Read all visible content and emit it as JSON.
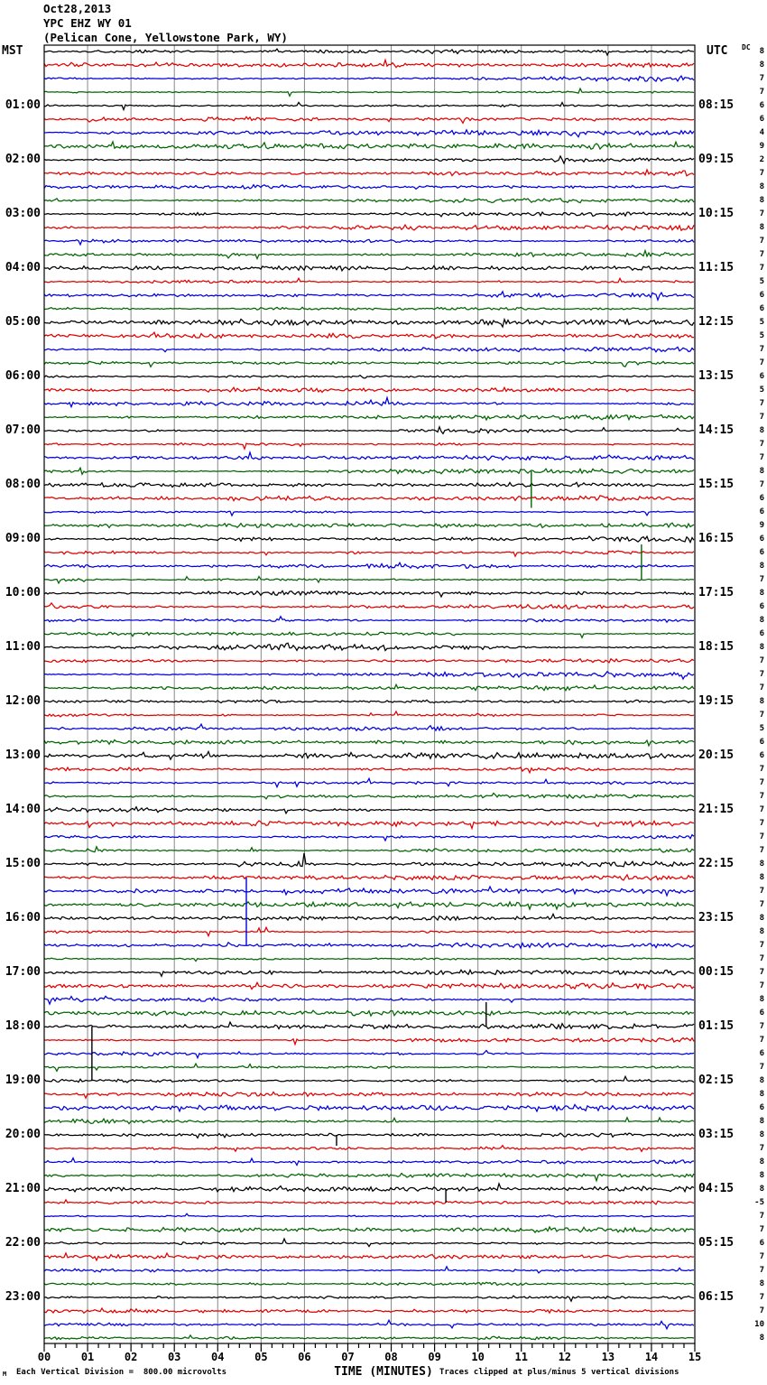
{
  "header": {
    "date": "Oct28,2013",
    "station": "YPC EHZ WY 01",
    "location": "(Pelican Cone, Yellowstone Park, WY)"
  },
  "axes": {
    "left_header": "MST",
    "right_header": "UTC",
    "dc_header": "DC",
    "xlabel": "TIME (MINUTES)",
    "x_ticks": [
      "00",
      "01",
      "02",
      "03",
      "04",
      "05",
      "06",
      "07",
      "08",
      "09",
      "10",
      "11",
      "12",
      "13",
      "14",
      "15"
    ]
  },
  "footer": {
    "left": "Each Vertical Division =  800.00 microvolts",
    "right": "Traces clipped at plus/minus 5 vertical divisions",
    "watermark": "M"
  },
  "colors": {
    "black": "#000000",
    "red": "#e00000",
    "blue": "#0000dd",
    "green": "#006600",
    "grid": "#888888"
  },
  "chart_data": {
    "type": "line",
    "subtype": "helicorder-seismogram",
    "x_range_minutes": [
      0,
      15
    ],
    "minutes_per_row": 15,
    "rows_per_hour": 4,
    "clip_divisions": 5,
    "division_microvolts": 800.0,
    "hour_marks": [
      {
        "mst": "01:00",
        "utc": "08:15"
      },
      {
        "mst": "02:00",
        "utc": "09:15"
      },
      {
        "mst": "03:00",
        "utc": "10:15"
      },
      {
        "mst": "04:00",
        "utc": "11:15"
      },
      {
        "mst": "05:00",
        "utc": "12:15"
      },
      {
        "mst": "06:00",
        "utc": "13:15"
      },
      {
        "mst": "07:00",
        "utc": "14:15"
      },
      {
        "mst": "08:00",
        "utc": "15:15"
      },
      {
        "mst": "09:00",
        "utc": "16:15"
      },
      {
        "mst": "10:00",
        "utc": "17:15"
      },
      {
        "mst": "11:00",
        "utc": "18:15"
      },
      {
        "mst": "12:00",
        "utc": "19:15"
      },
      {
        "mst": "13:00",
        "utc": "20:15"
      },
      {
        "mst": "14:00",
        "utc": "21:15"
      },
      {
        "mst": "15:00",
        "utc": "22:15"
      },
      {
        "mst": "16:00",
        "utc": "23:15"
      },
      {
        "mst": "17:00",
        "utc": "00:15"
      },
      {
        "mst": "18:00",
        "utc": "01:15"
      },
      {
        "mst": "19:00",
        "utc": "02:15"
      },
      {
        "mst": "20:00",
        "utc": "03:15"
      },
      {
        "mst": "21:00",
        "utc": "04:15"
      },
      {
        "mst": "22:00",
        "utc": "05:15"
      },
      {
        "mst": "23:00",
        "utc": "06:15"
      }
    ],
    "rows_format": [
      "start_mst",
      "color",
      "dc"
    ],
    "rows": [
      [
        "00:00",
        "black",
        8
      ],
      [
        "00:15",
        "red",
        8
      ],
      [
        "00:30",
        "blue",
        7
      ],
      [
        "00:45",
        "green",
        7
      ],
      [
        "01:00",
        "black",
        6
      ],
      [
        "01:15",
        "red",
        6
      ],
      [
        "01:30",
        "blue",
        4
      ],
      [
        "01:45",
        "green",
        9
      ],
      [
        "02:00",
        "black",
        2
      ],
      [
        "02:15",
        "red",
        7
      ],
      [
        "02:30",
        "blue",
        8
      ],
      [
        "02:45",
        "green",
        8
      ],
      [
        "03:00",
        "black",
        7
      ],
      [
        "03:15",
        "red",
        8
      ],
      [
        "03:30",
        "blue",
        7
      ],
      [
        "03:45",
        "green",
        7
      ],
      [
        "04:00",
        "black",
        7
      ],
      [
        "04:15",
        "red",
        5
      ],
      [
        "04:30",
        "blue",
        6
      ],
      [
        "04:45",
        "green",
        6
      ],
      [
        "05:00",
        "black",
        5
      ],
      [
        "05:15",
        "red",
        5
      ],
      [
        "05:30",
        "blue",
        7
      ],
      [
        "05:45",
        "green",
        7
      ],
      [
        "06:00",
        "black",
        6
      ],
      [
        "06:15",
        "red",
        5
      ],
      [
        "06:30",
        "blue",
        7
      ],
      [
        "06:45",
        "green",
        7
      ],
      [
        "07:00",
        "black",
        8
      ],
      [
        "07:15",
        "red",
        7
      ],
      [
        "07:30",
        "blue",
        7
      ],
      [
        "07:45",
        "green",
        8
      ],
      [
        "08:00",
        "black",
        7
      ],
      [
        "08:15",
        "red",
        6
      ],
      [
        "08:30",
        "blue",
        6
      ],
      [
        "08:45",
        "green",
        9
      ],
      [
        "09:00",
        "black",
        6
      ],
      [
        "09:15",
        "red",
        6
      ],
      [
        "09:30",
        "blue",
        8
      ],
      [
        "09:45",
        "green",
        7
      ],
      [
        "10:00",
        "black",
        8
      ],
      [
        "10:15",
        "red",
        6
      ],
      [
        "10:30",
        "blue",
        8
      ],
      [
        "10:45",
        "green",
        6
      ],
      [
        "11:00",
        "black",
        8
      ],
      [
        "11:15",
        "red",
        7
      ],
      [
        "11:30",
        "blue",
        7
      ],
      [
        "11:45",
        "green",
        7
      ],
      [
        "12:00",
        "black",
        8
      ],
      [
        "12:15",
        "red",
        7
      ],
      [
        "12:30",
        "blue",
        5
      ],
      [
        "12:45",
        "green",
        6
      ],
      [
        "13:00",
        "black",
        6
      ],
      [
        "13:15",
        "red",
        7
      ],
      [
        "13:30",
        "blue",
        7
      ],
      [
        "13:45",
        "green",
        7
      ],
      [
        "14:00",
        "black",
        7
      ],
      [
        "14:15",
        "red",
        7
      ],
      [
        "14:30",
        "blue",
        7
      ],
      [
        "14:45",
        "green",
        7
      ],
      [
        "15:00",
        "black",
        8
      ],
      [
        "15:15",
        "red",
        8
      ],
      [
        "15:30",
        "blue",
        7
      ],
      [
        "15:45",
        "green",
        7
      ],
      [
        "16:00",
        "black",
        8
      ],
      [
        "16:15",
        "red",
        8
      ],
      [
        "16:30",
        "blue",
        7
      ],
      [
        "16:45",
        "green",
        7
      ],
      [
        "17:00",
        "black",
        7
      ],
      [
        "17:15",
        "red",
        7
      ],
      [
        "17:30",
        "blue",
        8
      ],
      [
        "17:45",
        "green",
        6
      ],
      [
        "18:00",
        "black",
        7
      ],
      [
        "18:15",
        "red",
        7
      ],
      [
        "18:30",
        "blue",
        6
      ],
      [
        "18:45",
        "green",
        7
      ],
      [
        "19:00",
        "black",
        8
      ],
      [
        "19:15",
        "red",
        8
      ],
      [
        "19:30",
        "blue",
        6
      ],
      [
        "19:45",
        "green",
        8
      ],
      [
        "20:00",
        "black",
        8
      ],
      [
        "20:15",
        "red",
        7
      ],
      [
        "20:30",
        "blue",
        8
      ],
      [
        "20:45",
        "green",
        8
      ],
      [
        "21:00",
        "black",
        8
      ],
      [
        "21:15",
        "red",
        -5
      ],
      [
        "21:30",
        "blue",
        7
      ],
      [
        "21:45",
        "green",
        7
      ],
      [
        "22:00",
        "black",
        6
      ],
      [
        "22:15",
        "red",
        7
      ],
      [
        "22:30",
        "blue",
        7
      ],
      [
        "22:45",
        "green",
        8
      ],
      [
        "23:00",
        "black",
        7
      ],
      [
        "23:15",
        "red",
        7
      ],
      [
        "23:30",
        "blue",
        10
      ],
      [
        "23:45",
        "green",
        8
      ]
    ],
    "events": [
      {
        "row": 31,
        "start_mst": "07:45",
        "minute": 11.23,
        "direction": "down",
        "amplitude_divisions": 2.7
      },
      {
        "row": 39,
        "start_mst": "09:45",
        "minute": 13.77,
        "direction": "up",
        "amplitude_divisions": 2.6
      },
      {
        "row": 60,
        "start_mst": "15:00",
        "type": "burst",
        "minute_start": 4.4,
        "minute_end": 6.3,
        "amplitude_factor": 3
      },
      {
        "row": 66,
        "start_mst": "16:30",
        "minute": 4.66,
        "direction": "up",
        "amplitude_divisions": 5,
        "clipped": true
      },
      {
        "row": 72,
        "start_mst": "18:00",
        "minute": 10.19,
        "direction": "up",
        "amplitude_divisions": 1.8
      },
      {
        "row": 76,
        "start_mst": "19:00",
        "minute": 1.1,
        "direction": "up",
        "amplitude_divisions": 4
      },
      {
        "row": 80,
        "start_mst": "20:00",
        "minute": 6.74,
        "direction": "down",
        "amplitude_divisions": 0.8
      },
      {
        "row": 84,
        "start_mst": "21:00",
        "minute": 9.26,
        "direction": "down",
        "amplitude_divisions": 1.0
      }
    ]
  }
}
